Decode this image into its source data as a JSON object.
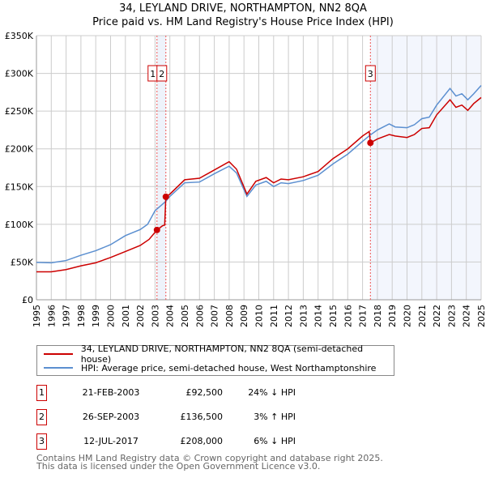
{
  "chart_data": {
    "type": "line",
    "title": "34, LEYLAND DRIVE, NORTHAMPTON, NN2 8QA",
    "subtitle": "Price paid vs. HM Land Registry's House Price Index (HPI)",
    "xlim": [
      1995,
      2025
    ],
    "ylim": [
      0,
      350000
    ],
    "x_ticks": [
      "1995",
      "1996",
      "1997",
      "1998",
      "1999",
      "2000",
      "2001",
      "2002",
      "2003",
      "2004",
      "2005",
      "2006",
      "2007",
      "2008",
      "2009",
      "2010",
      "2011",
      "2012",
      "2013",
      "2014",
      "2015",
      "2016",
      "2017",
      "2018",
      "2019",
      "2020",
      "2021",
      "2022",
      "2023",
      "2024",
      "2025"
    ],
    "y_ticks": [
      {
        "v": 0,
        "label": "£0"
      },
      {
        "v": 50000,
        "label": "£50K"
      },
      {
        "v": 100000,
        "label": "£100K"
      },
      {
        "v": 150000,
        "label": "£150K"
      },
      {
        "v": 200000,
        "label": "£200K"
      },
      {
        "v": 250000,
        "label": "£250K"
      },
      {
        "v": 300000,
        "label": "£300K"
      },
      {
        "v": 350000,
        "label": "£350K"
      }
    ],
    "grid": true,
    "series": [
      {
        "name": "34, LEYLAND DRIVE, NORTHAMPTON, NN2 8QA (semi-detached house)",
        "color": "#cc0000",
        "points": [
          [
            1995,
            37000
          ],
          [
            1996,
            37000
          ],
          [
            1997,
            40000
          ],
          [
            1998,
            45000
          ],
          [
            1999,
            49000
          ],
          [
            2000,
            56000
          ],
          [
            2001,
            64000
          ],
          [
            2002,
            72000
          ],
          [
            2002.6,
            80000
          ],
          [
            2003.13,
            92500
          ],
          [
            2003.5,
            98000
          ],
          [
            2003.65,
            99000
          ],
          [
            2003.73,
            136500
          ],
          [
            2004,
            140000
          ],
          [
            2005,
            159000
          ],
          [
            2006,
            161000
          ],
          [
            2007,
            172000
          ],
          [
            2008,
            183000
          ],
          [
            2008.5,
            173000
          ],
          [
            2009.2,
            140000
          ],
          [
            2009.8,
            157000
          ],
          [
            2010.5,
            162000
          ],
          [
            2011,
            155000
          ],
          [
            2011.5,
            160000
          ],
          [
            2012,
            159000
          ],
          [
            2013,
            163000
          ],
          [
            2014,
            170000
          ],
          [
            2015,
            187000
          ],
          [
            2016,
            200000
          ],
          [
            2017,
            217000
          ],
          [
            2017.45,
            223000
          ],
          [
            2017.53,
            208000
          ],
          [
            2018,
            213000
          ],
          [
            2018.8,
            219000
          ],
          [
            2019.2,
            217000
          ],
          [
            2020,
            215000
          ],
          [
            2020.5,
            219000
          ],
          [
            2021,
            227000
          ],
          [
            2021.5,
            228000
          ],
          [
            2022,
            245000
          ],
          [
            2022.9,
            265000
          ],
          [
            2023.3,
            255000
          ],
          [
            2023.7,
            258000
          ],
          [
            2024.1,
            251000
          ],
          [
            2024.5,
            260000
          ],
          [
            2025,
            268000
          ]
        ]
      },
      {
        "name": "HPI: Average price, semi-detached house, West Northamptonshire",
        "color": "#5b8fd0",
        "points": [
          [
            1995,
            49500
          ],
          [
            1996,
            49000
          ],
          [
            1997,
            52000
          ],
          [
            1998,
            59000
          ],
          [
            1999,
            65000
          ],
          [
            2000,
            73000
          ],
          [
            2001,
            85000
          ],
          [
            2002,
            93000
          ],
          [
            2002.5,
            100000
          ],
          [
            2003,
            118000
          ],
          [
            2003.7,
            130000
          ],
          [
            2004,
            137000
          ],
          [
            2005,
            155000
          ],
          [
            2006,
            156000
          ],
          [
            2007,
            167000
          ],
          [
            2008,
            177000
          ],
          [
            2008.5,
            168000
          ],
          [
            2009.2,
            137000
          ],
          [
            2009.8,
            152000
          ],
          [
            2010.5,
            157000
          ],
          [
            2011,
            150000
          ],
          [
            2011.5,
            155000
          ],
          [
            2012,
            154000
          ],
          [
            2013,
            158000
          ],
          [
            2014,
            165000
          ],
          [
            2015,
            180000
          ],
          [
            2016,
            193000
          ],
          [
            2017,
            210000
          ],
          [
            2017.5,
            218000
          ],
          [
            2018,
            225000
          ],
          [
            2018.8,
            233000
          ],
          [
            2019.2,
            229000
          ],
          [
            2020,
            228000
          ],
          [
            2020.5,
            232000
          ],
          [
            2021,
            240000
          ],
          [
            2021.5,
            242000
          ],
          [
            2022,
            258000
          ],
          [
            2022.9,
            280000
          ],
          [
            2023.3,
            270000
          ],
          [
            2023.7,
            273000
          ],
          [
            2024.1,
            265000
          ],
          [
            2024.5,
            273000
          ],
          [
            2025,
            284000
          ]
        ]
      }
    ],
    "sales": [
      {
        "id": "1",
        "x": 2003.13,
        "price": 92500,
        "date": "21-FEB-2003",
        "price_label": "£92,500",
        "hpi": "24% ↓ HPI"
      },
      {
        "id": "2",
        "x": 2003.73,
        "price": 136500,
        "date": "26-SEP-2003",
        "price_label": "£136,500",
        "hpi": "3% ↑ HPI"
      },
      {
        "id": "3",
        "x": 2017.53,
        "price": 208000,
        "date": "12-JUL-2017",
        "price_label": "£208,000",
        "hpi": "6% ↓ HPI"
      }
    ],
    "legend_placement": "bottom"
  },
  "footer": {
    "line1": "Contains HM Land Registry data © Crown copyright and database right 2025.",
    "line2": "This data is licensed under the Open Government Licence v3.0."
  }
}
